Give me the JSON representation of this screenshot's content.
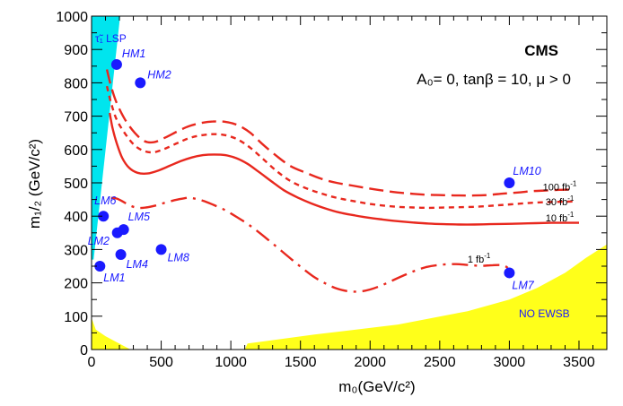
{
  "chart_data": {
    "type": "line",
    "title": "CMS",
    "subtitle": "A₀= 0, tanβ = 10, μ > 0",
    "xlabel": "m₀(GeV/c²)",
    "ylabel": "m₁/₂ (GeV/c²)",
    "xlim": [
      0,
      3700
    ],
    "ylim": [
      0,
      1000
    ],
    "xticks": [
      "0",
      "500",
      "1000",
      "1500",
      "2000",
      "2500",
      "3000",
      "3500"
    ],
    "yticks": [
      "0",
      "100",
      "200",
      "300",
      "400",
      "500",
      "600",
      "700",
      "800",
      "900",
      "1000"
    ],
    "colors": {
      "curve": "#e8281e",
      "point": "#1a1aff",
      "lsp_region": "#00e5ee",
      "no_ewsb_region": "#ffff1a"
    },
    "series": [
      {
        "name": "100 fb-1",
        "style": "long-dash",
        "x": [
          110,
          140,
          180,
          240,
          310,
          380,
          450,
          530,
          620,
          700,
          780,
          870,
          960,
          1050,
          1140,
          1230,
          1330,
          1430,
          1540,
          1650,
          1760,
          1870,
          1980,
          2090,
          2200,
          2310,
          2420,
          2530,
          2640,
          2750,
          2860,
          2960,
          3060,
          3160,
          3260,
          3360,
          3460
        ],
        "y": [
          840,
          790,
          740,
          690,
          650,
          625,
          622,
          636,
          655,
          670,
          679,
          684,
          683,
          673,
          650,
          615,
          580,
          550,
          530,
          512,
          500,
          492,
          484,
          477,
          471,
          467,
          464,
          463,
          462,
          462,
          464,
          468,
          471,
          475,
          477,
          479,
          480
        ]
      },
      {
        "name": "30 fb-1",
        "style": "short-dash",
        "x": [
          110,
          140,
          180,
          240,
          310,
          380,
          450,
          530,
          620,
          700,
          780,
          870,
          960,
          1050,
          1140,
          1230,
          1330,
          1430,
          1540,
          1650,
          1760,
          1870,
          1980,
          2090,
          2200,
          2310,
          2420,
          2530,
          2640,
          2750,
          2860,
          2960,
          3060,
          3160,
          3260,
          3360,
          3460
        ],
        "y": [
          790,
          740,
          690,
          648,
          612,
          595,
          592,
          603,
          620,
          634,
          642,
          646,
          643,
          630,
          605,
          572,
          535,
          505,
          484,
          468,
          455,
          446,
          438,
          432,
          428,
          426,
          425,
          426,
          427,
          428,
          431,
          434,
          437,
          440,
          442,
          443,
          444
        ]
      },
      {
        "name": "10 fb-1",
        "style": "solid",
        "x": [
          130,
          150,
          180,
          220,
          270,
          330,
          400,
          480,
          560,
          640,
          720,
          800,
          880,
          960,
          1040,
          1120,
          1200,
          1290,
          1380,
          1480,
          1580,
          1680,
          1780,
          1880,
          1980,
          2090,
          2200,
          2310,
          2420,
          2530,
          2640,
          2750,
          2860,
          2970,
          3080,
          3190,
          3300,
          3410,
          3500
        ],
        "y": [
          710,
          665,
          620,
          575,
          545,
          530,
          528,
          537,
          551,
          565,
          576,
          583,
          585,
          583,
          574,
          557,
          533,
          505,
          478,
          456,
          438,
          423,
          411,
          403,
          396,
          390,
          385,
          381,
          378,
          376,
          375,
          375,
          376,
          377,
          378,
          379,
          380,
          380,
          380
        ]
      },
      {
        "name": "1 fb-1",
        "style": "dash-dot",
        "x": [
          140,
          180,
          220,
          270,
          330,
          390,
          460,
          540,
          620,
          690,
          750,
          810,
          880,
          960,
          1040,
          1120,
          1200,
          1280,
          1360,
          1440,
          1520,
          1600,
          1680,
          1760,
          1840,
          1920,
          2000,
          2080,
          2160,
          2240,
          2320,
          2400,
          2480,
          2560,
          2640,
          2720,
          2800,
          2880,
          2960,
          3000
        ],
        "y": [
          455,
          453,
          445,
          433,
          425,
          426,
          432,
          442,
          450,
          455,
          452,
          445,
          433,
          418,
          398,
          377,
          352,
          325,
          297,
          269,
          242,
          217,
          198,
          183,
          175,
          174,
          180,
          192,
          207,
          222,
          236,
          247,
          253,
          256,
          256,
          253,
          251,
          253,
          252,
          240
        ]
      }
    ],
    "series_labels": [
      {
        "base": "100 fb",
        "sup": "-1",
        "x": 3240,
        "y": 488
      },
      {
        "base": "30 fb",
        "sup": "-1",
        "x": 3260,
        "y": 443
      },
      {
        "base": "10 fb",
        "sup": "-1",
        "x": 3260,
        "y": 395
      },
      {
        "base": "1 fb",
        "sup": "-1",
        "x": 2700,
        "y": 271
      }
    ],
    "points": [
      {
        "name": "HM1",
        "x": 180,
        "y": 855
      },
      {
        "name": "HM2",
        "x": 350,
        "y": 800
      },
      {
        "name": "LM6",
        "x": 85,
        "y": 400
      },
      {
        "name": "LM5",
        "x": 230,
        "y": 360
      },
      {
        "name": "LM2",
        "x": 185,
        "y": 350
      },
      {
        "name": "LM8",
        "x": 500,
        "y": 300
      },
      {
        "name": "LM4",
        "x": 210,
        "y": 285
      },
      {
        "name": "LM1",
        "x": 60,
        "y": 250
      },
      {
        "name": "LM10",
        "x": 3000,
        "y": 500
      },
      {
        "name": "LM7",
        "x": 3000,
        "y": 230
      }
    ],
    "regions": {
      "lsp_label": "τ̃₁ LSP",
      "no_ewsb_label": "NO EWSB"
    }
  }
}
